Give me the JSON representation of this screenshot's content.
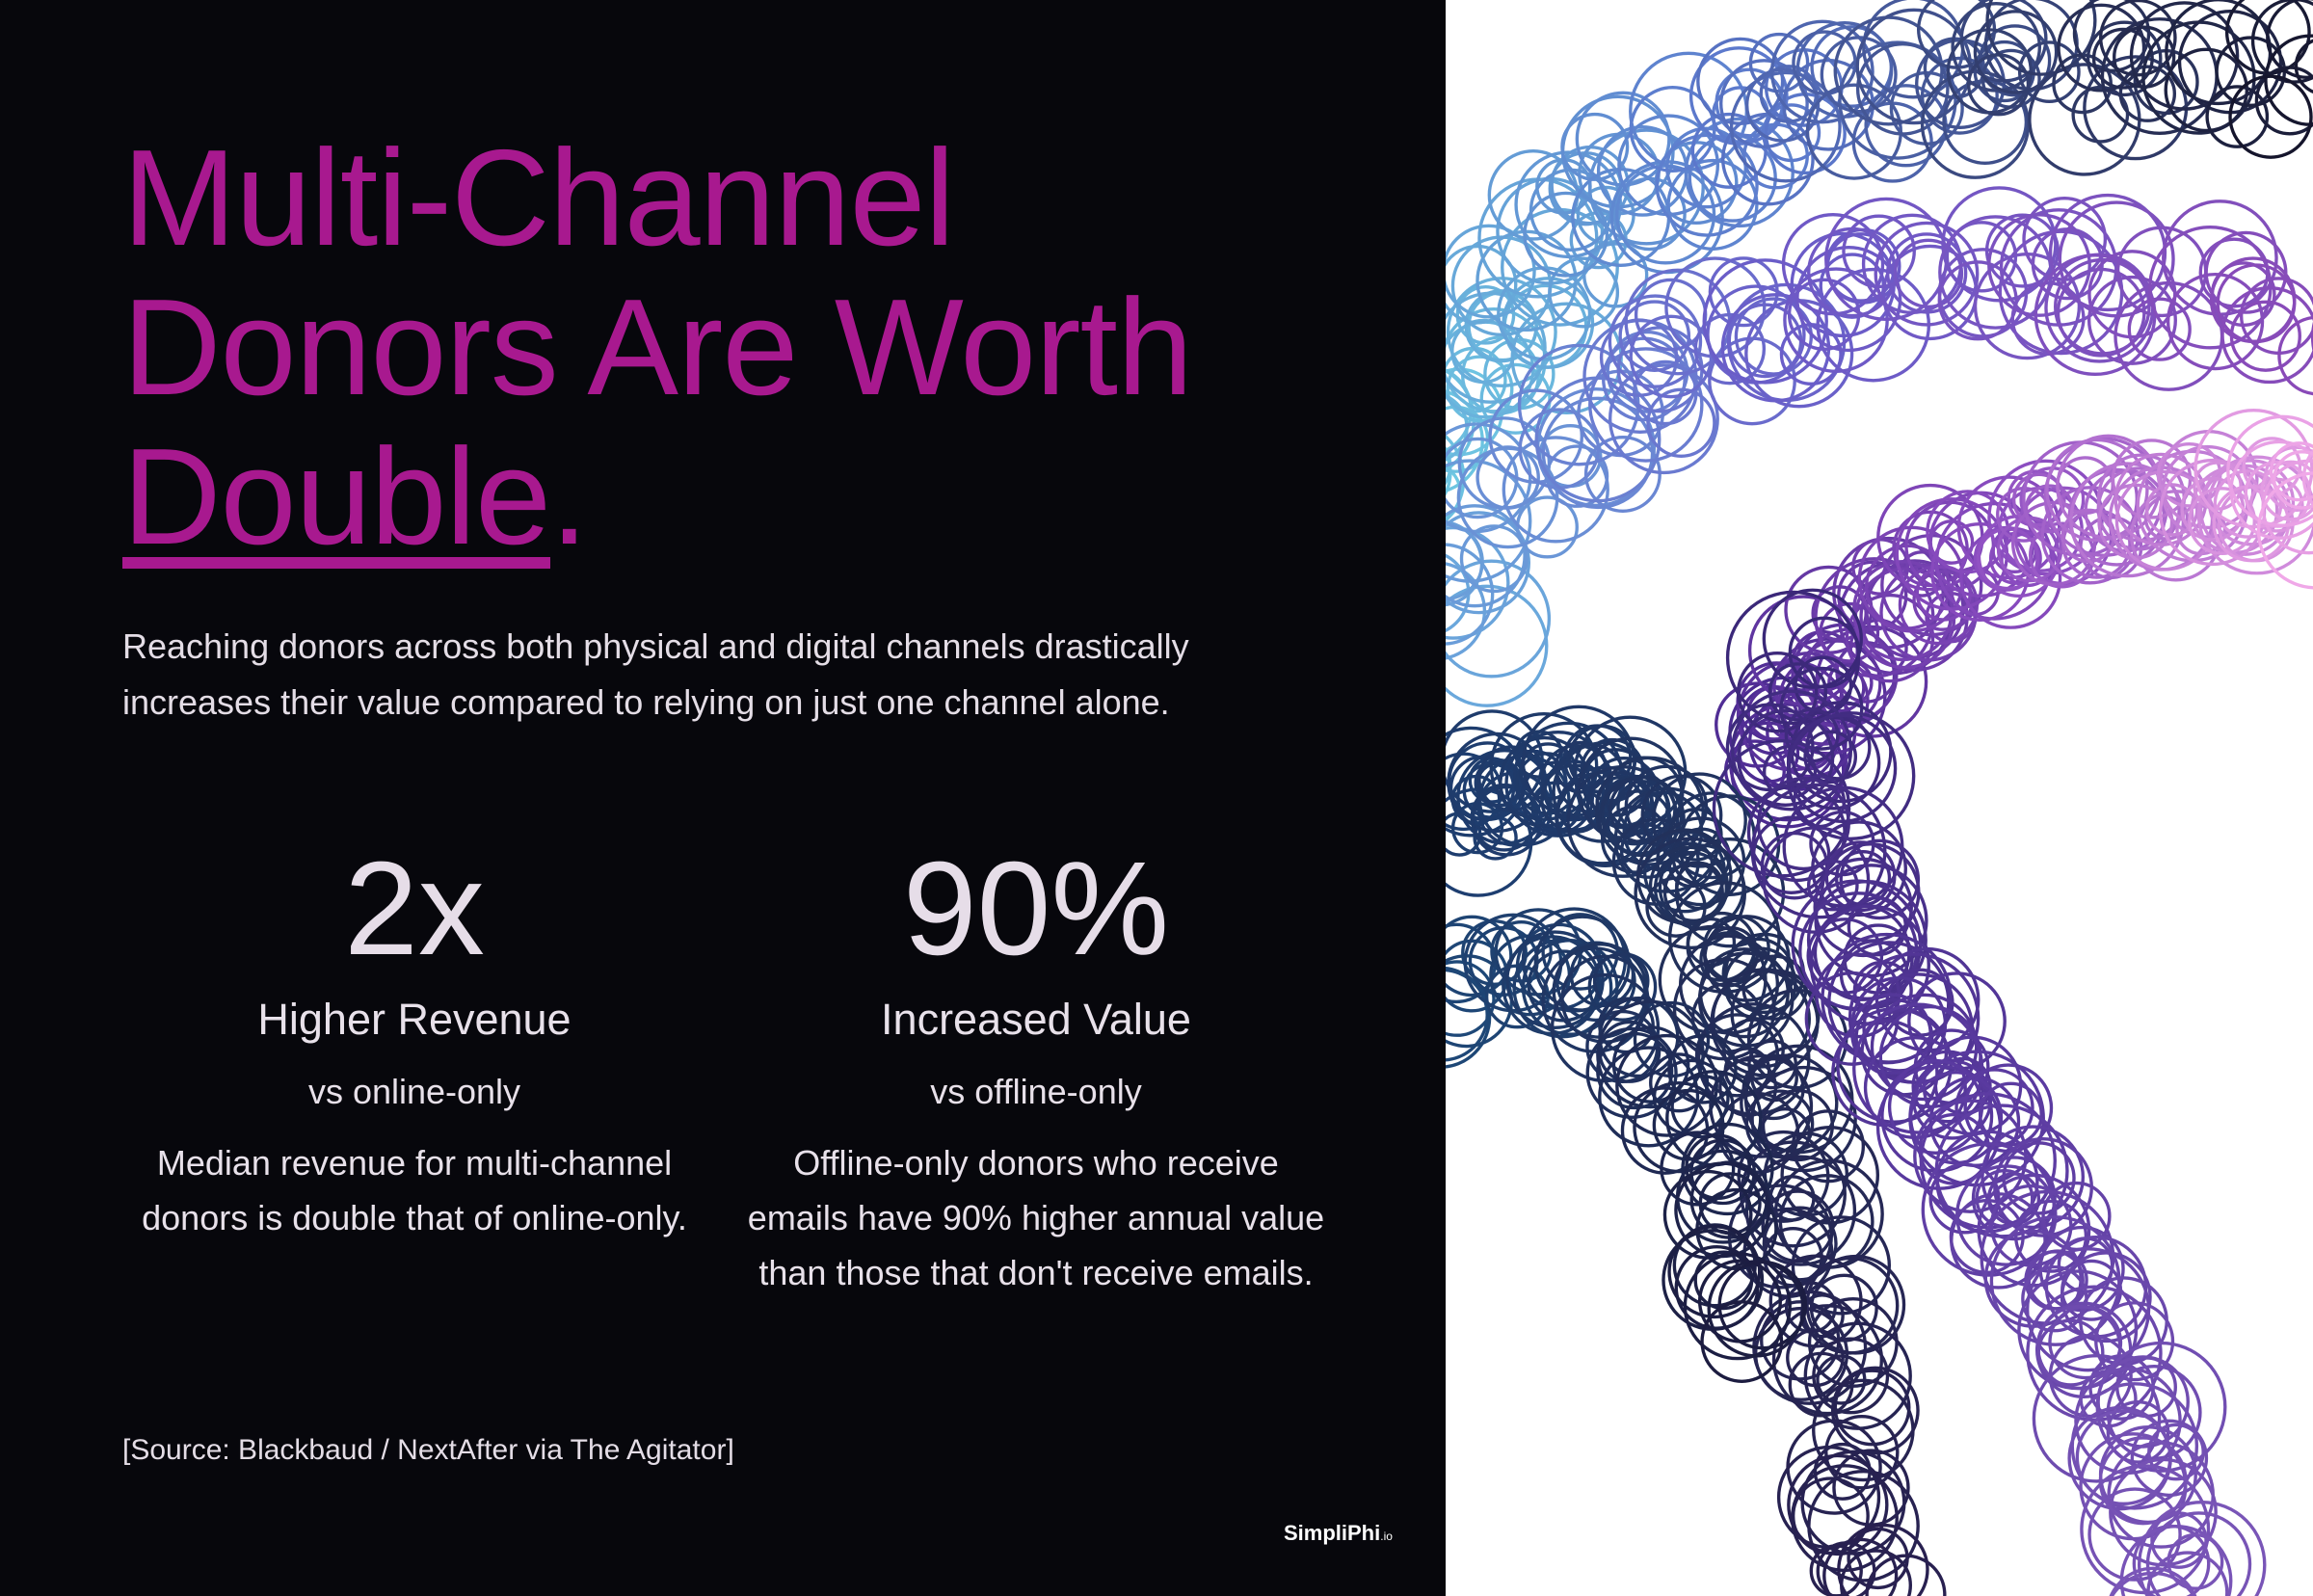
{
  "title": {
    "line1": "Multi-Channel",
    "line2": "Donors Are Worth",
    "highlight": "Double",
    "end": "."
  },
  "intro": "Reaching donors across both physical and digital channels drastically increases their value compared to relying on just one channel alone.",
  "stats": [
    {
      "value": "2x",
      "label": "Higher Revenue",
      "comparison": "vs online-only",
      "description": "Median revenue for multi-channel donors is double that of online-only."
    },
    {
      "value": "90%",
      "label": "Increased Value",
      "comparison": "vs offline-only",
      "description": "Offline-only donors who receive emails have 90% higher annual value than those that don't receive emails."
    }
  ],
  "source": "[Source: Blackbaud / NextAfter via The Agitator]",
  "logo": {
    "name": "SimpliPhi",
    "suffix": ".io"
  },
  "colors": {
    "background": "#07070c",
    "accent": "#a8198f",
    "text": "#e4dde6",
    "art_background": "#ffffff"
  },
  "artwork": {
    "description_icon": "overlapping-circles-pattern"
  }
}
